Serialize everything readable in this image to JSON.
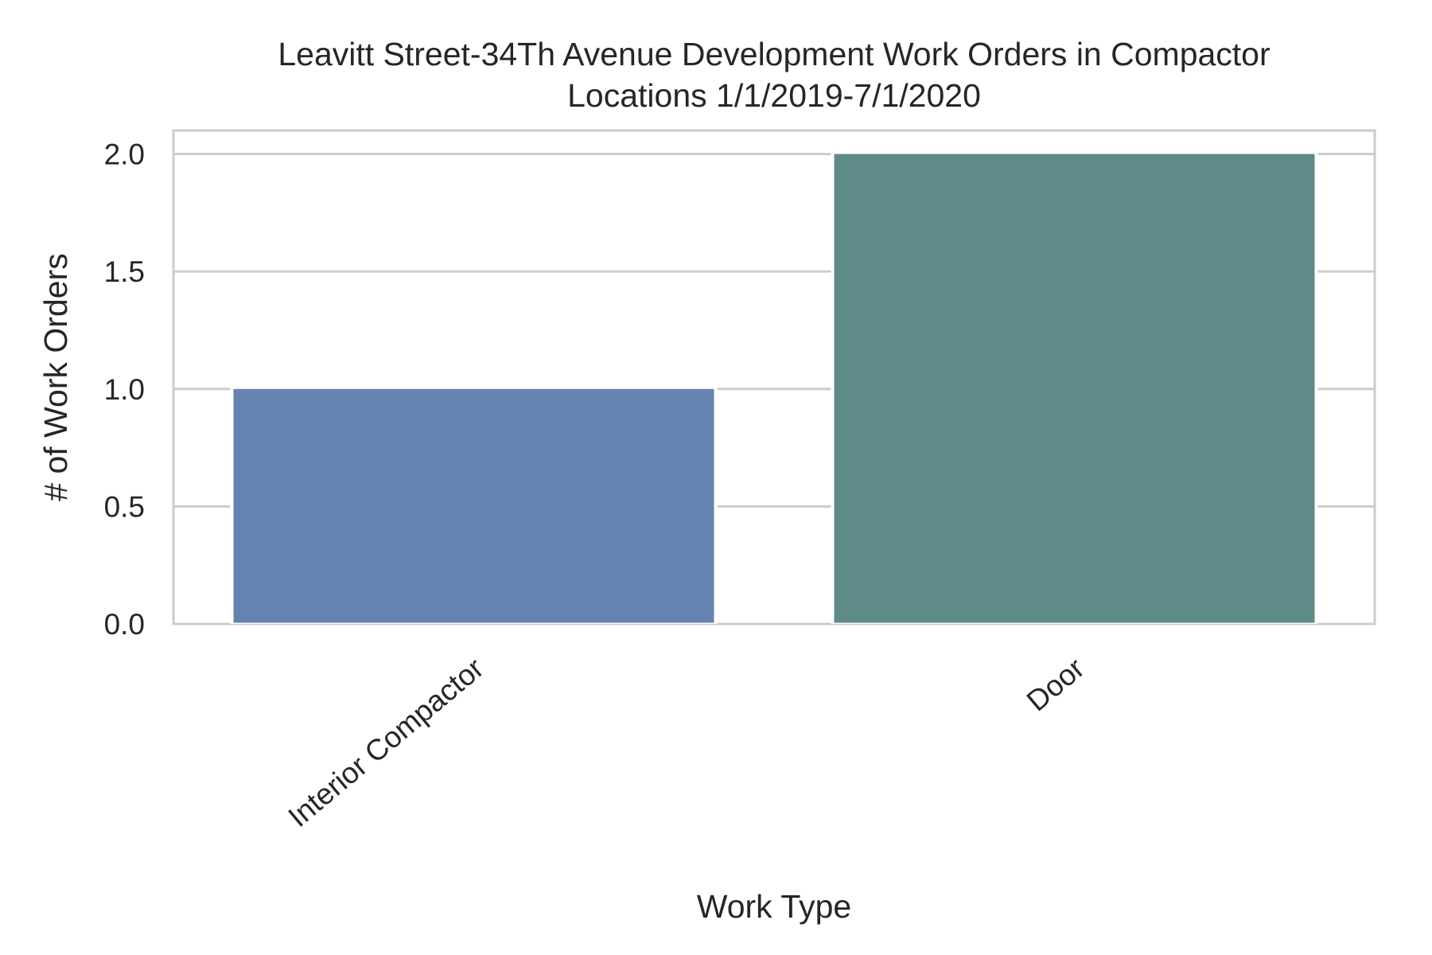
{
  "chart_data": {
    "type": "bar",
    "title_lines": [
      "Leavitt Street-34Th Avenue Development Work Orders in Compactor",
      "Locations 1/1/2019-7/1/2020"
    ],
    "xlabel": "Work Type",
    "ylabel": "# of Work Orders",
    "categories": [
      "Interior Compactor",
      "Door"
    ],
    "values": [
      1,
      2
    ],
    "colors": [
      "#6682b0",
      "#5e8a87"
    ],
    "ylim": [
      0,
      2.1
    ],
    "yticks": [
      "0.0",
      "0.5",
      "1.0",
      "1.5",
      "2.0"
    ],
    "grid": true,
    "legend": false
  }
}
